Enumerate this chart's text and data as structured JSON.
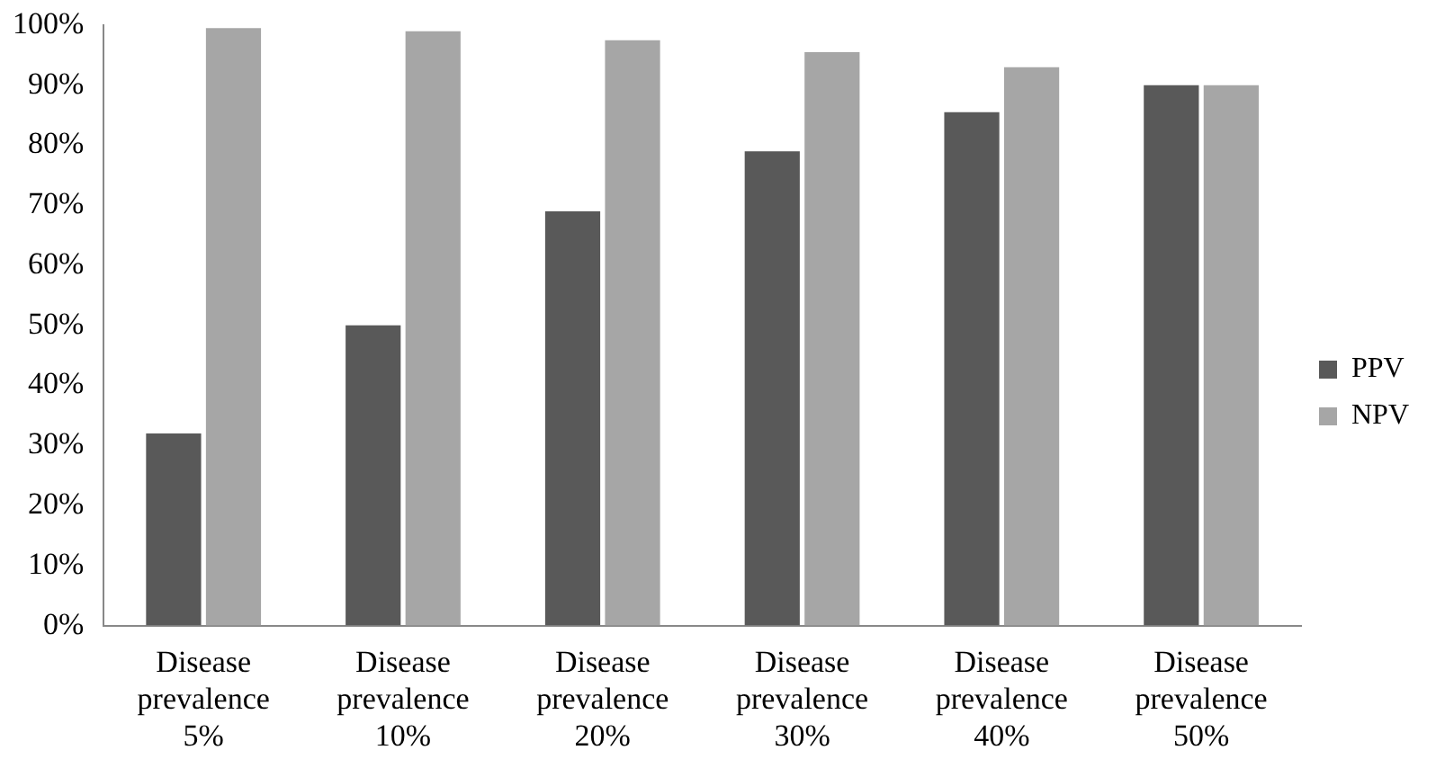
{
  "chart_data": {
    "type": "bar",
    "categories": [
      "Disease prevalence 5%",
      "Disease prevalence 10%",
      "Disease prevalence 20%",
      "Disease prevalence 30%",
      "Disease prevalence 40%",
      "Disease prevalence 50%"
    ],
    "series": [
      {
        "name": "PPV",
        "color": "#595959",
        "values": [
          32,
          50,
          69,
          79,
          85.5,
          90
        ]
      },
      {
        "name": "NPV",
        "color": "#a6a6a6",
        "values": [
          99.5,
          99,
          97.5,
          95.5,
          93,
          90
        ]
      }
    ],
    "ylim": [
      0,
      100
    ],
    "yticks": [
      {
        "value": 0,
        "label": "0%"
      },
      {
        "value": 10,
        "label": "10%"
      },
      {
        "value": 20,
        "label": "20%"
      },
      {
        "value": 30,
        "label": "30%"
      },
      {
        "value": 40,
        "label": "40%"
      },
      {
        "value": 50,
        "label": "50%"
      },
      {
        "value": 60,
        "label": "60%"
      },
      {
        "value": 70,
        "label": "70%"
      },
      {
        "value": 80,
        "label": "80%"
      },
      {
        "value": 90,
        "label": "90%"
      },
      {
        "value": 100,
        "label": "100%"
      }
    ],
    "grid": false,
    "legend": "right"
  }
}
